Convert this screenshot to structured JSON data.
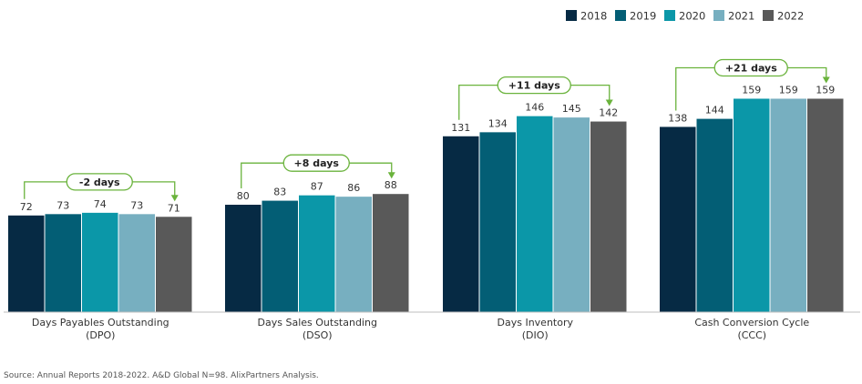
{
  "chart_data": {
    "type": "bar",
    "categories": [
      {
        "name": "Days Payables Outstanding",
        "abbr": "(DPO)",
        "change": "-2 days"
      },
      {
        "name": "Days Sales Outstanding",
        "abbr": "(DSO)",
        "change": "+8 days"
      },
      {
        "name": "Days Inventory",
        "abbr": "(DIO)",
        "change": "+11 days"
      },
      {
        "name": "Cash Conversion Cycle",
        "abbr": "(CCC)",
        "change": "+21 days"
      }
    ],
    "series": [
      {
        "name": "2018",
        "color": "#062a44",
        "values": [
          72,
          80,
          131,
          138
        ]
      },
      {
        "name": "2019",
        "color": "#035e75",
        "values": [
          73,
          83,
          134,
          144
        ]
      },
      {
        "name": "2020",
        "color": "#0b97a8",
        "values": [
          74,
          87,
          146,
          159
        ]
      },
      {
        "name": "2021",
        "color": "#77afc0",
        "values": [
          73,
          86,
          145,
          159
        ]
      },
      {
        "name": "2022",
        "color": "#595959",
        "values": [
          71,
          88,
          142,
          159
        ]
      }
    ],
    "ylim": [
      0,
      175
    ],
    "legend_position": "top-right",
    "annotation_color": "#6ab33c",
    "grid": false
  },
  "footer": {
    "source": "Source: Annual Reports 2018-2022. A&D Global N=98.  AlixPartners Analysis."
  }
}
